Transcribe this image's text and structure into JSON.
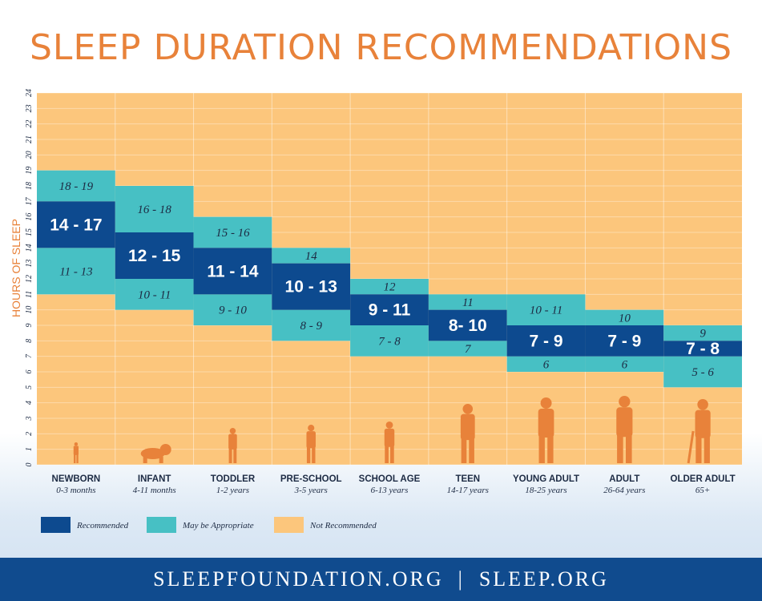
{
  "colors": {
    "recommended": "#0d4a8f",
    "may_be_appropriate": "#47c0c4",
    "not_recommended": "#fcc67c",
    "title": "#e8823a",
    "axis_label": "#e8823a",
    "footer_bg": "#104b8e"
  },
  "chart_data": {
    "type": "bar",
    "title": "SLEEP DURATION RECOMMENDATIONS",
    "ylabel": "HOURS OF SLEEP",
    "xlabel": "",
    "ylim": [
      0,
      24
    ],
    "y_ticks": [
      "0",
      "1",
      "2",
      "3",
      "4",
      "5",
      "6",
      "7",
      "8",
      "9",
      "10",
      "11",
      "12",
      "13",
      "14",
      "15",
      "16",
      "17",
      "18",
      "19",
      "20",
      "21",
      "22",
      "23",
      "24"
    ],
    "grid": true,
    "legend_position": "bottom-left",
    "categories": [
      {
        "name": "NEWBORN",
        "age": "0-3 months",
        "icon": "newborn-silhouette-icon",
        "recommended": [
          14,
          17
        ],
        "rec_label": "14 - 17",
        "appropriate_high": [
          17,
          19
        ],
        "high_label": "18 - 19",
        "appropriate_low": [
          11,
          14
        ],
        "low_label": "11 - 13"
      },
      {
        "name": "INFANT",
        "age": "4-11 months",
        "icon": "infant-crawling-silhouette-icon",
        "recommended": [
          12,
          15
        ],
        "rec_label": "12 - 15",
        "appropriate_high": [
          15,
          18
        ],
        "high_label": "16 - 18",
        "appropriate_low": [
          10,
          12
        ],
        "low_label": "10 - 11"
      },
      {
        "name": "TODDLER",
        "age": "1-2 years",
        "icon": "toddler-silhouette-icon",
        "recommended": [
          11,
          14
        ],
        "rec_label": "11 - 14",
        "appropriate_high": [
          14,
          16
        ],
        "high_label": "15 - 16",
        "appropriate_low": [
          9,
          11
        ],
        "low_label": "9 - 10"
      },
      {
        "name": "PRE-SCHOOL",
        "age": "3-5 years",
        "icon": "preschooler-silhouette-icon",
        "recommended": [
          10,
          13
        ],
        "rec_label": "10 - 13",
        "appropriate_high": [
          13,
          14
        ],
        "high_label": "14",
        "appropriate_low": [
          8,
          10
        ],
        "low_label": "8 - 9"
      },
      {
        "name": "SCHOOL AGE",
        "age": "6-13 years",
        "icon": "school-age-child-silhouette-icon",
        "recommended": [
          9,
          11
        ],
        "rec_label": "9 - 11",
        "appropriate_high": [
          11,
          12
        ],
        "high_label": "12",
        "appropriate_low": [
          7,
          9
        ],
        "low_label": "7 - 8"
      },
      {
        "name": "TEEN",
        "age": "14-17 years",
        "icon": "teen-silhouette-icon",
        "recommended": [
          8,
          10
        ],
        "rec_label": "8- 10",
        "appropriate_high": [
          10,
          11
        ],
        "high_label": "11",
        "appropriate_low": [
          7,
          8
        ],
        "low_label": "7"
      },
      {
        "name": "YOUNG ADULT",
        "age": "18-25 years",
        "icon": "young-adult-silhouette-icon",
        "recommended": [
          7,
          9
        ],
        "rec_label": "7 - 9",
        "appropriate_high": [
          9,
          11
        ],
        "high_label": "10 - 11",
        "appropriate_low": [
          6,
          7
        ],
        "low_label": "6"
      },
      {
        "name": "ADULT",
        "age": "26-64 years",
        "icon": "adult-silhouette-icon",
        "recommended": [
          7,
          9
        ],
        "rec_label": "7 - 9",
        "appropriate_high": [
          9,
          10
        ],
        "high_label": "10",
        "appropriate_low": [
          6,
          7
        ],
        "low_label": "6"
      },
      {
        "name": "OLDER ADULT",
        "age": "65+",
        "icon": "older-adult-with-cane-silhouette-icon",
        "recommended": [
          7,
          8
        ],
        "rec_label": "7 - 8",
        "appropriate_high": [
          8,
          9
        ],
        "high_label": "9",
        "appropriate_low": [
          5,
          7
        ],
        "low_label": "5 - 6"
      }
    ],
    "legend": [
      {
        "label": "Recommended",
        "color_key": "recommended"
      },
      {
        "label": "May be Appropriate",
        "color_key": "may_be_appropriate"
      },
      {
        "label": "Not Recommended",
        "color_key": "not_recommended"
      }
    ]
  },
  "footer": {
    "left": "SLEEPFOUNDATION.ORG",
    "separator": "|",
    "right": "SLEEP.ORG"
  }
}
